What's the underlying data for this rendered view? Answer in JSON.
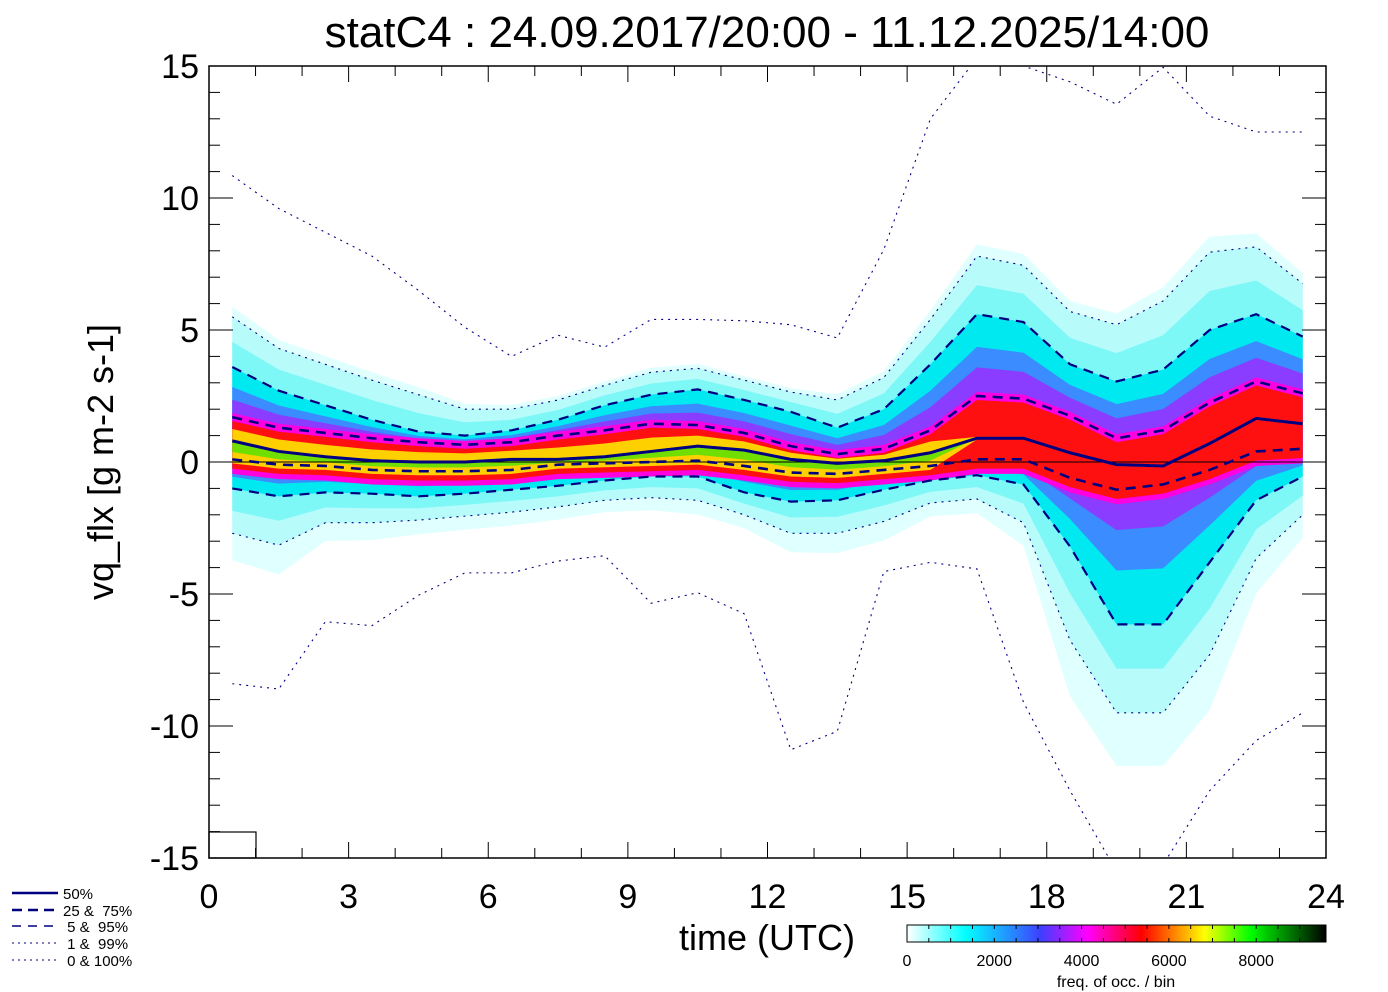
{
  "chart_data": {
    "type": "line",
    "title": "statC4 : 24.09.2017/20:00 - 11.12.2025/14:00",
    "xlabel": "time (UTC)",
    "ylabel": "vq_flx [g m-2 s-1]",
    "xlim": [
      0,
      24
    ],
    "ylim": [
      -15,
      15
    ],
    "xticks": [
      "0",
      "3",
      "6",
      "9",
      "12",
      "15",
      "18",
      "21",
      "24"
    ],
    "xtick_values": [
      0,
      3,
      6,
      9,
      12,
      15,
      18,
      21,
      24
    ],
    "yticks": [
      "-15",
      "-10",
      "-5",
      "0",
      "5",
      "10",
      "15"
    ],
    "ytick_values": [
      -15,
      -10,
      -5,
      0,
      5,
      10,
      15
    ],
    "grid": false,
    "x": [
      0.5,
      1.5,
      2.5,
      3.5,
      4.5,
      5.5,
      6.5,
      7.5,
      8.5,
      9.5,
      10.5,
      11.5,
      12.5,
      13.5,
      14.5,
      15.5,
      16.5,
      17.5,
      18.5,
      19.5,
      20.5,
      21.5,
      22.5,
      23.5
    ],
    "series": [
      {
        "name": "50%",
        "style": "solid",
        "values": [
          0.8,
          0.4,
          0.2,
          0.05,
          0,
          0,
          0.1,
          0.1,
          0.2,
          0.4,
          0.6,
          0.45,
          0.1,
          -0.05,
          0.05,
          0.35,
          0.9,
          0.9,
          0.35,
          -0.1,
          -0.15,
          0.7,
          1.65,
          1.45
        ]
      },
      {
        "name": "25%",
        "style": "dashed",
        "values": [
          0.1,
          -0.1,
          -0.15,
          -0.3,
          -0.35,
          -0.35,
          -0.3,
          -0.1,
          -0.05,
          0,
          0.05,
          -0.15,
          -0.4,
          -0.45,
          -0.3,
          -0.15,
          0.1,
          0.1,
          -0.6,
          -1.05,
          -0.85,
          -0.3,
          0.4,
          0.5
        ]
      },
      {
        "name": "75%",
        "style": "dashed",
        "values": [
          1.7,
          1.3,
          1.1,
          0.9,
          0.75,
          0.65,
          0.75,
          1.0,
          1.2,
          1.45,
          1.4,
          1.1,
          0.6,
          0.3,
          0.5,
          1.2,
          2.5,
          2.4,
          1.75,
          0.9,
          1.2,
          2.25,
          3.05,
          2.6
        ]
      },
      {
        "name": "5%",
        "style": "dashed",
        "values": [
          -1.0,
          -1.3,
          -1.15,
          -1.2,
          -1.3,
          -1.2,
          -1.05,
          -0.9,
          -0.7,
          -0.55,
          -0.55,
          -1.15,
          -1.5,
          -1.45,
          -1.05,
          -0.7,
          -0.5,
          -0.85,
          -3.2,
          -6.15,
          -6.15,
          -3.8,
          -1.45,
          -0.55
        ]
      },
      {
        "name": "95%",
        "style": "dashed",
        "values": [
          3.6,
          2.7,
          2.15,
          1.6,
          1.15,
          1.0,
          1.2,
          1.6,
          2.15,
          2.55,
          2.75,
          2.35,
          1.9,
          1.3,
          2.0,
          3.7,
          5.6,
          5.3,
          3.7,
          3.05,
          3.5,
          5.0,
          5.6,
          4.75
        ]
      },
      {
        "name": "1%",
        "style": "dotted",
        "values": [
          -2.7,
          -3.15,
          -2.3,
          -2.3,
          -2.2,
          -2.05,
          -1.9,
          -1.7,
          -1.45,
          -1.35,
          -1.45,
          -2.0,
          -2.7,
          -2.7,
          -2.25,
          -1.55,
          -1.4,
          -2.3,
          -6.75,
          -9.5,
          -9.5,
          -7.3,
          -3.65,
          -2.0
        ]
      },
      {
        "name": "99%",
        "style": "dotted",
        "values": [
          5.5,
          4.3,
          3.7,
          3.1,
          2.55,
          2.0,
          2.0,
          2.35,
          2.9,
          3.4,
          3.55,
          3.1,
          2.65,
          2.35,
          3.2,
          5.4,
          7.8,
          7.45,
          5.7,
          5.2,
          6.1,
          7.95,
          8.15,
          6.75
        ]
      },
      {
        "name": "0%",
        "style": "dotted",
        "values": [
          -8.4,
          -8.6,
          -6.05,
          -6.2,
          -5.05,
          -4.2,
          -4.2,
          -3.75,
          -3.55,
          -5.35,
          -4.95,
          -5.75,
          -10.9,
          -10.2,
          -4.15,
          -3.8,
          -4.05,
          -9.1,
          -12.45,
          -15.5,
          -15.25,
          -12.45,
          -10.55,
          -9.5
        ]
      },
      {
        "name": "100%",
        "style": "dotted",
        "values": [
          10.85,
          9.6,
          8.7,
          7.8,
          6.5,
          5.1,
          4.0,
          4.8,
          4.35,
          5.4,
          5.4,
          5.35,
          5.2,
          4.7,
          8.05,
          13.0,
          15.3,
          15.0,
          14.4,
          13.55,
          14.95,
          13.1,
          12.5,
          12.5
        ]
      }
    ],
    "legend": {
      "placement": "bottom-left",
      "entries": [
        "50%",
        "25 &  75%",
        " 5 &  95%",
        " 1 &  99%",
        " 0 & 100%"
      ]
    },
    "colorbar": {
      "label": "freq. of occ. / bin",
      "range": [
        0,
        9600
      ],
      "ticks": [
        "0",
        "2000",
        "4000",
        "6000",
        "8000"
      ],
      "tick_values": [
        0,
        2000,
        4000,
        6000,
        8000
      ],
      "colors": [
        "#ffffff",
        "#00ffff",
        "#3f3fff",
        "#ff00ff",
        "#ff0000",
        "#ffff00",
        "#00ff00",
        "#000000"
      ]
    },
    "zero_line": 0
  },
  "style": {
    "line_color": "#000080",
    "axis_color": "#000000"
  }
}
